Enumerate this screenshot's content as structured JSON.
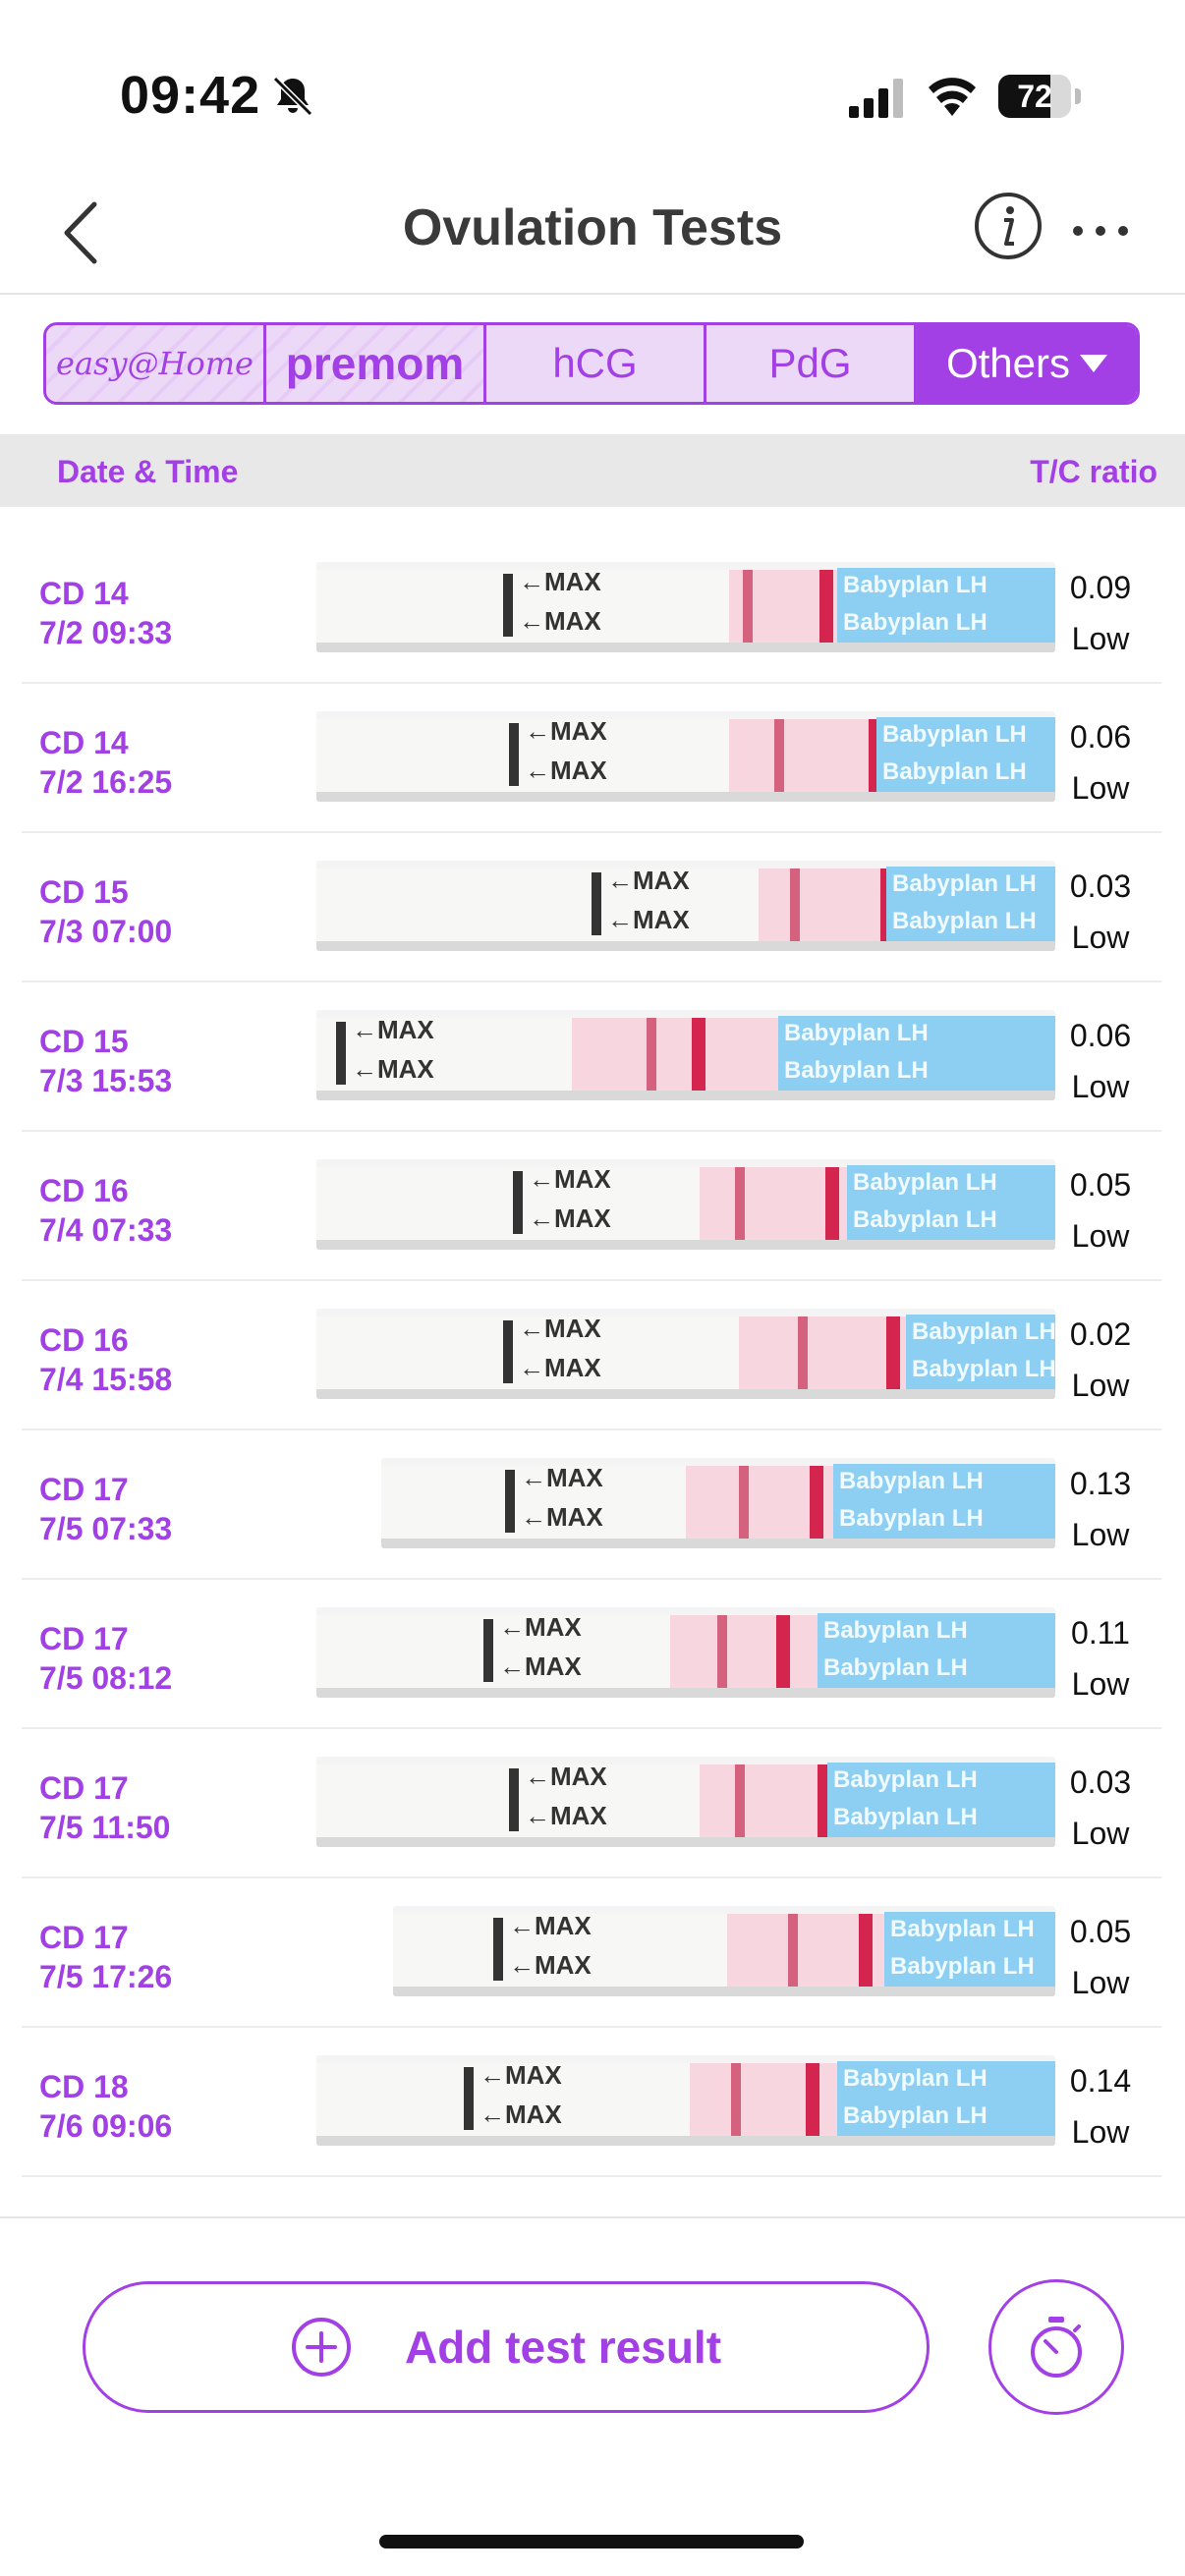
{
  "status": {
    "time": "09:42",
    "battery": "72"
  },
  "nav": {
    "title": "Ovulation Tests"
  },
  "tabs": [
    {
      "label": "easy@Home"
    },
    {
      "label": "premom"
    },
    {
      "label": "hCG"
    },
    {
      "label": "PdG"
    },
    {
      "label": "Others"
    }
  ],
  "columns": {
    "date": "Date & Time",
    "ratio": "T/C ratio"
  },
  "strip_text": {
    "max": "←MAX",
    "brand": "Babyplan LH"
  },
  "rows": [
    {
      "cd": "CD 14",
      "datetime": "7/2 09:33",
      "ratio": "0.09",
      "level": "Low"
    },
    {
      "cd": "CD 14",
      "datetime": "7/2 16:25",
      "ratio": "0.06",
      "level": "Low"
    },
    {
      "cd": "CD 15",
      "datetime": "7/3 07:00",
      "ratio": "0.03",
      "level": "Low"
    },
    {
      "cd": "CD 15",
      "datetime": "7/3 15:53",
      "ratio": "0.06",
      "level": "Low"
    },
    {
      "cd": "CD 16",
      "datetime": "7/4 07:33",
      "ratio": "0.05",
      "level": "Low"
    },
    {
      "cd": "CD 16",
      "datetime": "7/4 15:58",
      "ratio": "0.02",
      "level": "Low"
    },
    {
      "cd": "CD 17",
      "datetime": "7/5 07:33",
      "ratio": "0.13",
      "level": "Low"
    },
    {
      "cd": "CD 17",
      "datetime": "7/5 08:12",
      "ratio": "0.11",
      "level": "Low"
    },
    {
      "cd": "CD 17",
      "datetime": "7/5 11:50",
      "ratio": "0.03",
      "level": "Low"
    },
    {
      "cd": "CD 17",
      "datetime": "7/5 17:26",
      "ratio": "0.05",
      "level": "Low"
    },
    {
      "cd": "CD 18",
      "datetime": "7/6 09:06",
      "ratio": "0.14",
      "level": "Low"
    }
  ],
  "actions": {
    "add": "Add test result"
  },
  "icons": {
    "back": "chevron-left-icon",
    "info": "info-icon",
    "more": "more-icon",
    "add": "plus-circle-icon",
    "timer": "timer-icon",
    "bell": "bell-slash-icon"
  },
  "colors": {
    "accent": "#a240e6",
    "strip_blue": "#8ccff2",
    "strip_pink": "#f7d6df",
    "test_line": "#d3254e"
  }
}
